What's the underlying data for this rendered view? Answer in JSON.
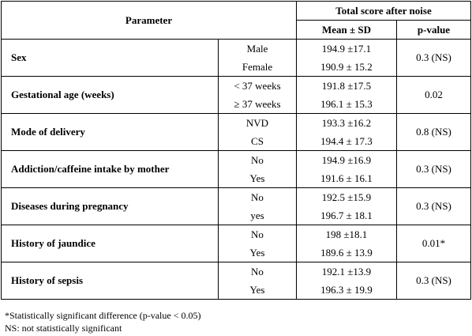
{
  "header": {
    "parameter": "Parameter",
    "group_title": "Total score after noise",
    "mean_sd": "Mean ± SD",
    "p_value": "p-value"
  },
  "rows": [
    {
      "param": "Sex",
      "cats": [
        "Male",
        "Female"
      ],
      "means": [
        "194.9 ±17.1",
        "190.9 ± 15.2"
      ],
      "p": "0.3 (NS)"
    },
    {
      "param": "Gestational age (weeks)",
      "cats": [
        "< 37 weeks",
        "≥ 37 weeks"
      ],
      "means": [
        "191.8 ±17.5",
        "196.1 ± 15.3"
      ],
      "p": "0.02"
    },
    {
      "param": "Mode of delivery",
      "cats": [
        "NVD",
        "CS"
      ],
      "means": [
        "193.3 ±16.2",
        "194.4 ± 17.3"
      ],
      "p": "0.8 (NS)"
    },
    {
      "param": "Addiction/caffeine intake by mother",
      "cats": [
        "No",
        "Yes"
      ],
      "means": [
        "194.9 ±16.9",
        "191.6 ± 16.1"
      ],
      "p": "0.3 (NS)"
    },
    {
      "param": "Diseases during pregnancy",
      "cats": [
        "No",
        "yes"
      ],
      "means": [
        "192.5 ±15.9",
        "196.7 ± 18.1"
      ],
      "p": "0.3 (NS)"
    },
    {
      "param": "History of jaundice",
      "cats": [
        "No",
        "Yes"
      ],
      "means": [
        "198 ±18.1",
        "189.6 ± 13.9"
      ],
      "p": "0.01*"
    },
    {
      "param": "History of sepsis",
      "cats": [
        "No",
        "Yes"
      ],
      "means": [
        "192.1 ±13.9",
        "196.3 ± 19.9"
      ],
      "p": "0.3 (NS)"
    }
  ],
  "footnotes": {
    "significance": "*Statistically significant difference (p-value < 0.05)",
    "ns": "NS: not statistically significant"
  }
}
